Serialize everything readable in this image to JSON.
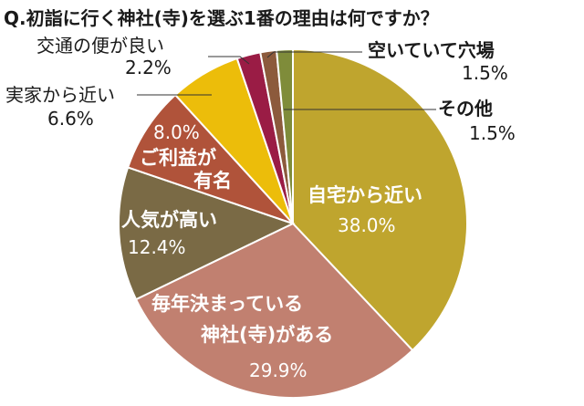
{
  "chart_data": {
    "type": "pie",
    "title": "Q.初詣に行く神社(寺)を選ぶ1番の理由は何ですか？",
    "slices": [
      {
        "label": "自宅から近い",
        "value": 38.0,
        "display": "38.0%",
        "color": "#bfa52e"
      },
      {
        "label": "毎年決まっている神社(寺)がある",
        "label_lines": [
          "毎年決まっている",
          "神社(寺)がある"
        ],
        "value": 29.9,
        "display": "29.9%",
        "color": "#c18070"
      },
      {
        "label": "人気が高い",
        "value": 12.4,
        "display": "12.4%",
        "color": "#7a6a45"
      },
      {
        "label": "ご利益が有名",
        "label_lines": [
          "ご利益が",
          "有名"
        ],
        "value": 8.0,
        "display": "8.0%",
        "color": "#b0533a"
      },
      {
        "label": "実家から近い",
        "value": 6.6,
        "display": "6.6%",
        "color": "#ecbd0a"
      },
      {
        "label": "交通の便が良い",
        "value": 2.2,
        "display": "2.2%",
        "color": "#9a1c45"
      },
      {
        "label": "空いていて穴場",
        "value": 1.5,
        "display": "1.5%",
        "color": "#8c5a3c"
      },
      {
        "label": "その他",
        "value": 1.5,
        "display": "1.5%",
        "color": "#7f8c3a"
      }
    ]
  }
}
